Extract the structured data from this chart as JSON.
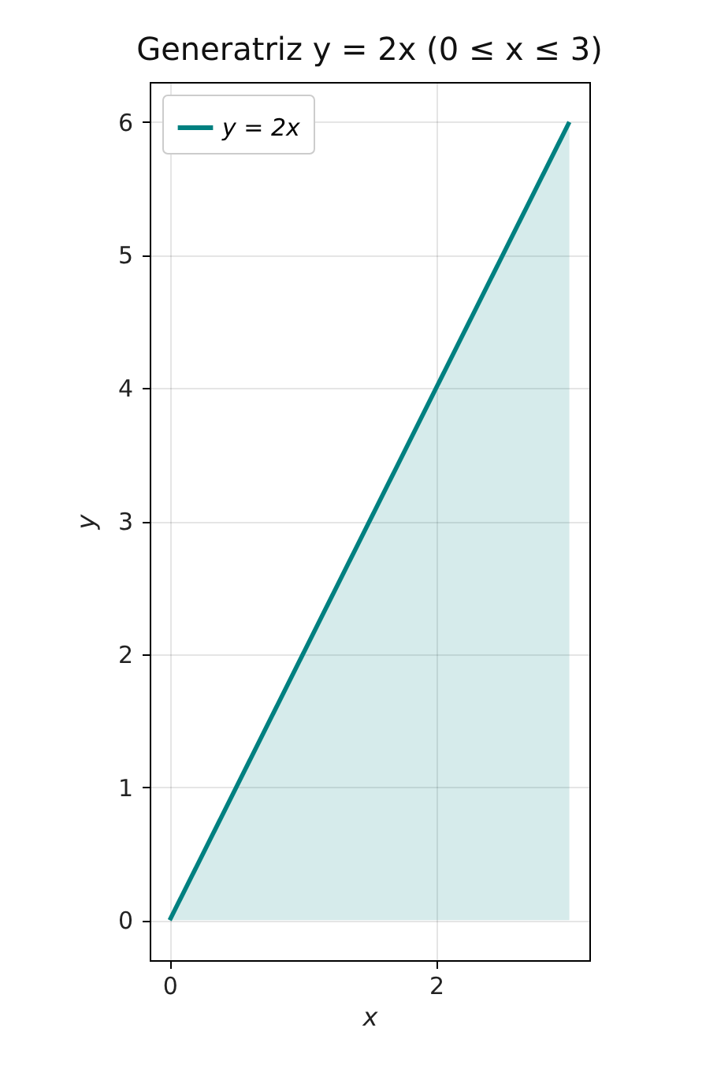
{
  "chart_data": {
    "type": "area",
    "title": "Generatriz y = 2x (0 ≤ x ≤ 3)",
    "xlabel": "x",
    "ylabel": "y",
    "series": [
      {
        "name": "y = 2x",
        "color": "#008080",
        "x": [
          0,
          3
        ],
        "values": [
          0,
          6
        ]
      }
    ],
    "xlim": [
      -0.15,
      3.15
    ],
    "ylim": [
      -0.3,
      6.3
    ],
    "xticks": [
      0,
      2
    ],
    "yticks": [
      0,
      1,
      2,
      3,
      4,
      5,
      6
    ],
    "grid": true,
    "legend": "top left"
  }
}
